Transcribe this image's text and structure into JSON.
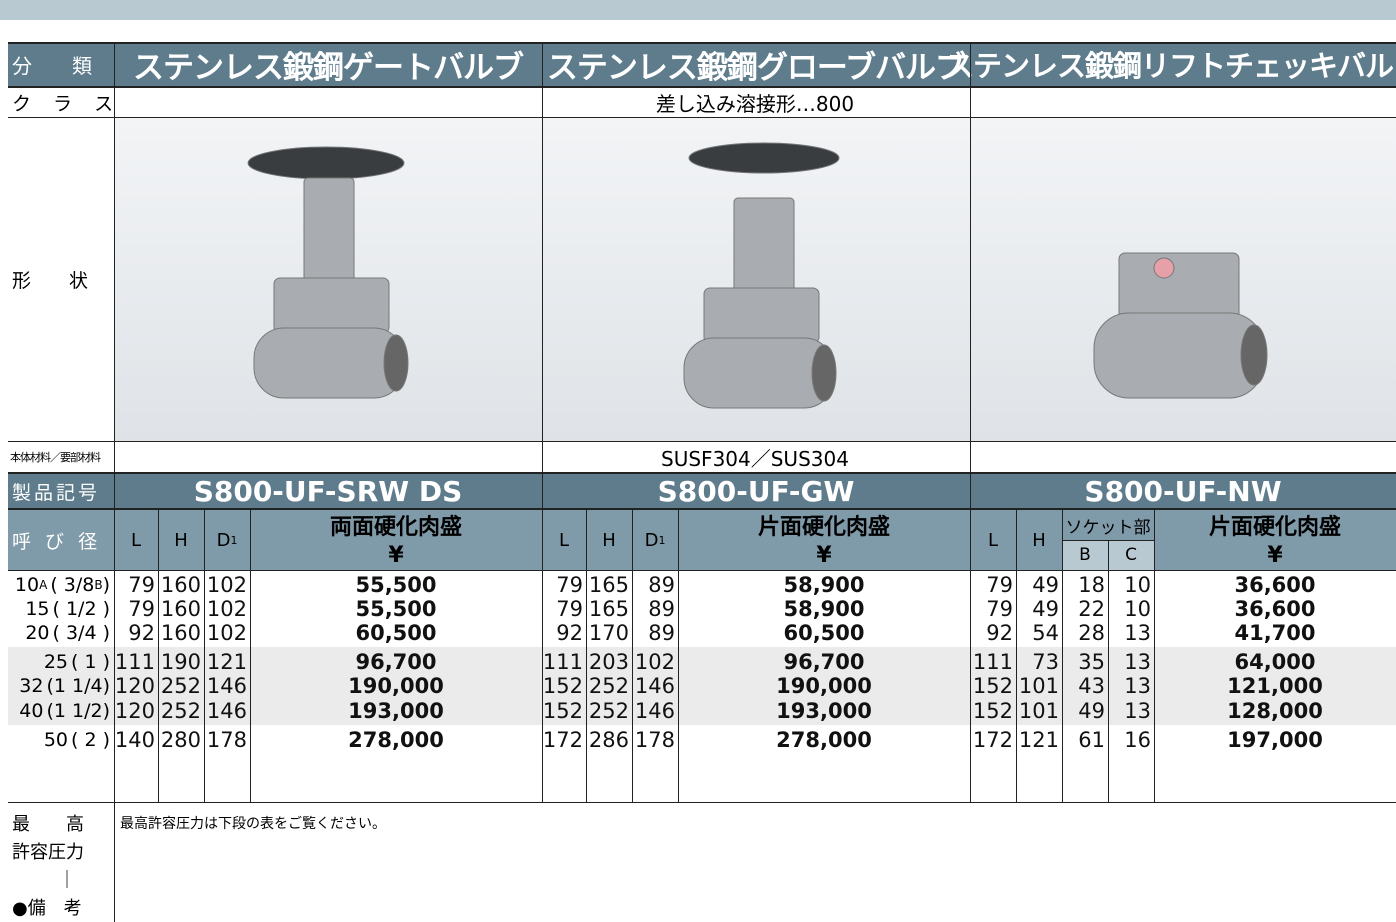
{
  "table": {
    "category_label": "分　　類",
    "products": [
      "ステンレス鍛鋼ゲートバルブ",
      "ステンレス鍛鋼グローブバルブ",
      "ステンレス鍛鋼リフトチェッキバルブ"
    ],
    "class_label": "ク ラ ス",
    "class_value": "差し込み溶接形…800",
    "shape_label": "形　　状",
    "material_label": "本体材料／要部材料",
    "material_value": "SUSF304／SUS304",
    "model_label": "製品記号",
    "models": [
      "S800-UF-SRW DS",
      "S800-UF-GW",
      "S800-UF-NW"
    ],
    "size_label": "呼 び 径",
    "headers": {
      "L": "L",
      "H": "H",
      "D": "D",
      "D_sub": "1",
      "socket": "ソケット部",
      "B": "B",
      "C": "C",
      "both": "両面硬化肉盛",
      "one": "片面硬化肉盛",
      "yen": "¥"
    },
    "rows": [
      {
        "size": "10",
        "size_unit": "A",
        "inch": "( 3/8",
        "inch_unit": "B",
        "inch_close": ")",
        "gate": [
          79,
          160,
          102,
          "55,500"
        ],
        "globe": [
          79,
          165,
          89,
          "58,900"
        ],
        "check": [
          79,
          49,
          18,
          10,
          "36,600"
        ]
      },
      {
        "size": "15",
        "inch": "( 1/2 )",
        "gate": [
          79,
          160,
          102,
          "55,500"
        ],
        "globe": [
          79,
          165,
          89,
          "58,900"
        ],
        "check": [
          79,
          49,
          22,
          10,
          "36,600"
        ]
      },
      {
        "size": "20",
        "inch": "( 3/4 )",
        "gate": [
          92,
          160,
          102,
          "60,500"
        ],
        "globe": [
          92,
          170,
          89,
          "60,500"
        ],
        "check": [
          92,
          54,
          28,
          13,
          "41,700"
        ]
      },
      {
        "size": "25",
        "inch": "(  1  )",
        "gate": [
          111,
          190,
          121,
          "96,700"
        ],
        "globe": [
          111,
          203,
          102,
          "96,700"
        ],
        "check": [
          111,
          73,
          35,
          13,
          "64,000"
        ]
      },
      {
        "size": "32",
        "inch": "(1 1/4)",
        "gate": [
          120,
          252,
          146,
          "190,000"
        ],
        "globe": [
          152,
          252,
          146,
          "190,000"
        ],
        "check": [
          152,
          101,
          43,
          13,
          "121,000"
        ]
      },
      {
        "size": "40",
        "inch": "(1 1/2)",
        "gate": [
          120,
          252,
          146,
          "193,000"
        ],
        "globe": [
          152,
          252,
          146,
          "193,000"
        ],
        "check": [
          152,
          101,
          49,
          13,
          "128,000"
        ]
      },
      {
        "size": "50",
        "inch": "(  2  )",
        "gate": [
          140,
          280,
          178,
          "278,000"
        ],
        "globe": [
          172,
          286,
          178,
          "278,000"
        ],
        "check": [
          172,
          121,
          61,
          16,
          "197,000"
        ]
      }
    ],
    "remarks_label": [
      "最　　高",
      "許容圧力",
      "｜",
      "●備　考"
    ],
    "remarks_value": "最高許容圧力は下段の表をご覧ください。"
  }
}
